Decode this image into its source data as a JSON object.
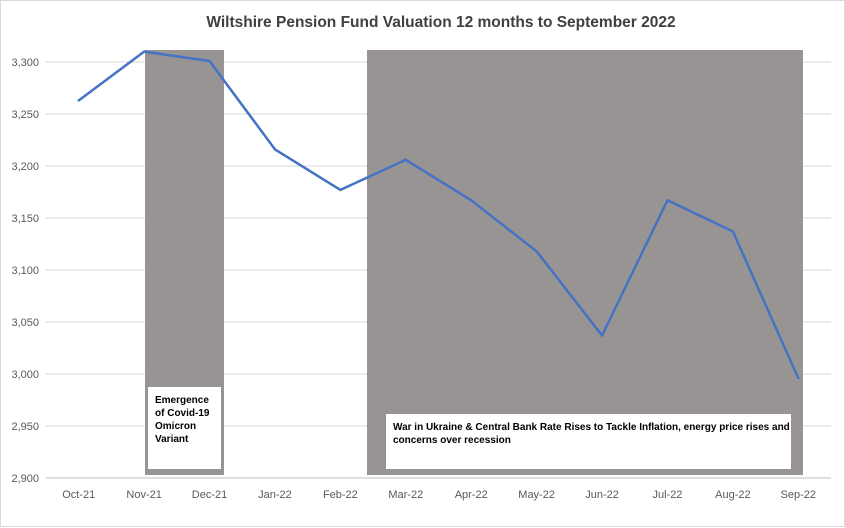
{
  "chart_data": {
    "type": "line",
    "title": "Wiltshire Pension Fund Valuation 12 months to September 2022",
    "xlabel": "",
    "ylabel": "",
    "categories": [
      "Oct-21",
      "Nov-21",
      "Dec-21",
      "Jan-22",
      "Feb-22",
      "Mar-22",
      "Apr-22",
      "May-22",
      "Jun-22",
      "Jul-22",
      "Aug-22",
      "Sep-22"
    ],
    "series": [
      {
        "values": [
          3263,
          3310,
          3301,
          3216,
          3177,
          3206,
          3167,
          3118,
          3037,
          3167,
          3137,
          2996
        ]
      }
    ],
    "ylim": [
      2900,
      3300
    ],
    "yticks": [
      2900,
      2950,
      3000,
      3050,
      3100,
      3150,
      3200,
      3250,
      3300
    ],
    "ytick_labels": [
      "2,900",
      "2,950",
      "3,000",
      "3,050",
      "3,100",
      "3,150",
      "3,200",
      "3,250",
      "3,300"
    ],
    "grid": true,
    "legend": "none",
    "line_color": "#4472c4",
    "shade_color": "#989494",
    "shaded_periods": [
      {
        "from": "Nov-21",
        "to": "Dec-21",
        "label_lines": [
          "Emergence",
          "of Covid-19",
          "Omicron",
          "Variant"
        ]
      },
      {
        "from": "Mar-22",
        "to": "Sep-22",
        "label_lines": [
          "War in Ukraine & Central Bank Rate Rises to Tackle Inflation, energy price rises and",
          "concerns over recession"
        ]
      }
    ]
  }
}
